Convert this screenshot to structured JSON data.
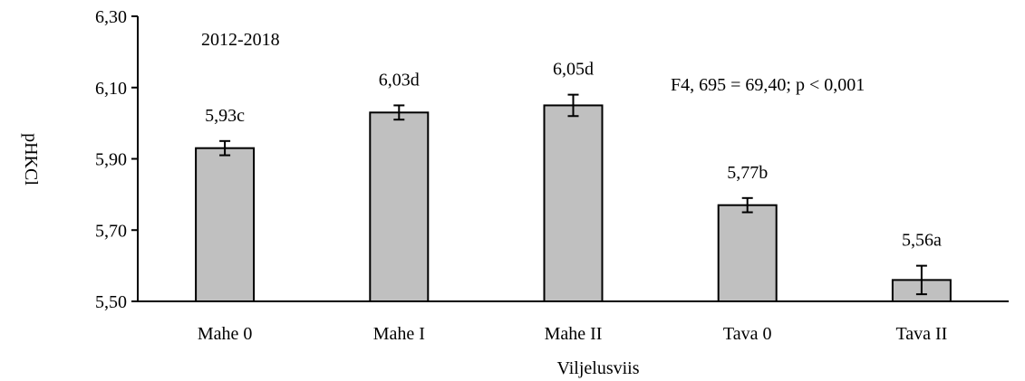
{
  "chart_data": {
    "type": "bar",
    "categories": [
      "Mahe 0",
      "Mahe I",
      "Mahe II",
      "Tava 0",
      "Tava II"
    ],
    "values": [
      5.93,
      6.03,
      6.05,
      5.77,
      5.56
    ],
    "errors": [
      0.02,
      0.02,
      0.03,
      0.02,
      0.04
    ],
    "bar_labels": [
      "5,93c",
      "6,03d",
      "6,05d",
      "5,77b",
      "5,56a"
    ],
    "xlabel": "Viljelusviis",
    "ylabel": "pHKCl",
    "ylim": [
      5.5,
      6.3
    ],
    "yticks": [
      5.5,
      5.7,
      5.9,
      6.1,
      6.3
    ],
    "ytick_labels": [
      "5,50",
      "5,70",
      "5,90",
      "6,10",
      "6,30"
    ],
    "annotations": {
      "period": "2012-2018",
      "stat": "F4, 695 = 69,40; p < 0,001"
    },
    "grid": false,
    "bar_color": "#c0c0c0",
    "bar_edge_color": "#000000"
  }
}
